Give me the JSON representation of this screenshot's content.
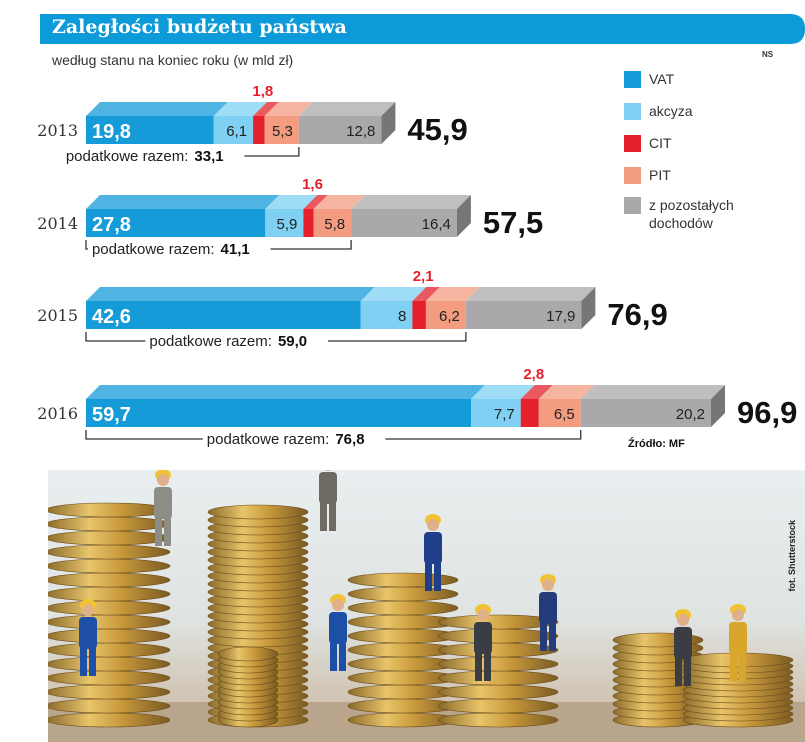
{
  "header": {
    "title": "Zaległości budżetu państwa",
    "subtitle": "według stanu na koniec roku (w mld zł)",
    "credit": "NS"
  },
  "legend": [
    {
      "label": "VAT",
      "color": "#159bd8"
    },
    {
      "label": "akcyza",
      "color": "#7fd0f2"
    },
    {
      "label": "CIT",
      "color": "#e3202b"
    },
    {
      "label": "PIT",
      "color": "#f39c80"
    },
    {
      "label": "z pozostałych dochodów",
      "color": "#a9a9ab"
    }
  ],
  "source": "Źródło: MF",
  "photo_credit": "fot. Shutterstock",
  "chart_data": {
    "type": "bar",
    "orientation": "horizontal",
    "stacked": true,
    "categories": [
      "2013",
      "2014",
      "2015",
      "2016"
    ],
    "series": [
      {
        "name": "VAT",
        "values": [
          19.8,
          27.8,
          42.6,
          59.7
        ],
        "labels": [
          "19,8",
          "27,8",
          "42,6",
          "59,7"
        ]
      },
      {
        "name": "akcyza",
        "values": [
          6.1,
          5.9,
          8.0,
          7.7
        ],
        "labels": [
          "6,1",
          "5,9",
          "8",
          "7,7"
        ]
      },
      {
        "name": "CIT",
        "values": [
          1.8,
          1.6,
          2.1,
          2.8
        ],
        "labels": [
          "1,8",
          "1,6",
          "2,1",
          "2,8"
        ]
      },
      {
        "name": "PIT",
        "values": [
          5.3,
          5.8,
          6.2,
          6.5
        ],
        "labels": [
          "5,3",
          "5,8",
          "6,2",
          "6,5"
        ]
      },
      {
        "name": "z pozostałych dochodów",
        "values": [
          12.8,
          16.4,
          17.9,
          20.2
        ],
        "labels": [
          "12,8",
          "16,4",
          "17,9",
          "20,2"
        ]
      }
    ],
    "totals": [
      45.9,
      57.5,
      76.9,
      96.9
    ],
    "total_labels": [
      "45,9",
      "57,5",
      "76,9",
      "96,9"
    ],
    "tax_subtotal_label": "podatkowe razem:",
    "tax_subtotals": [
      33.1,
      41.1,
      59.0,
      76.8
    ],
    "tax_subtotal_labels": [
      "33,1",
      "41,1",
      "59,0",
      "76,8"
    ]
  }
}
